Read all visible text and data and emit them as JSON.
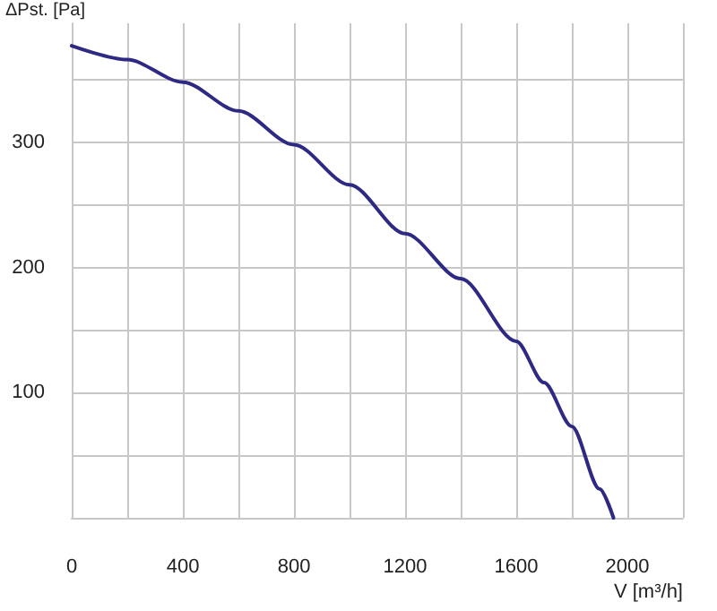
{
  "chart_data": {
    "type": "line",
    "xlabel": "V [m³/h]",
    "ylabel": "ΔPst. [Pa]",
    "x": [
      0,
      200,
      400,
      600,
      800,
      1000,
      1200,
      1400,
      1600,
      1700,
      1800,
      1900,
      1950
    ],
    "series": [
      {
        "color": "#2e2a84",
        "values": [
          377,
          366,
          348,
          325,
          298,
          266,
          227,
          191,
          141,
          108,
          73,
          23,
          0
        ]
      }
    ],
    "xlim": [
      0,
      2200
    ],
    "ylim": [
      0,
      395
    ],
    "xticks": [
      0,
      {
        "value": 200,
        "label": null
      },
      400,
      {
        "value": 600,
        "label": null
      },
      800,
      {
        "value": 1000,
        "label": null
      },
      1200,
      {
        "value": 1400,
        "label": null
      },
      1600,
      {
        "value": 1800,
        "label": null
      },
      2000,
      {
        "value": 2200,
        "label": null
      }
    ],
    "yticks": [
      {
        "value": 0,
        "label": null
      },
      {
        "value": 50,
        "label": null
      },
      100,
      {
        "value": 150,
        "label": null
      },
      200,
      {
        "value": 250,
        "label": null
      },
      300,
      {
        "value": 350,
        "label": null
      }
    ],
    "grid": true,
    "marker": "none",
    "line_style": "solid"
  }
}
